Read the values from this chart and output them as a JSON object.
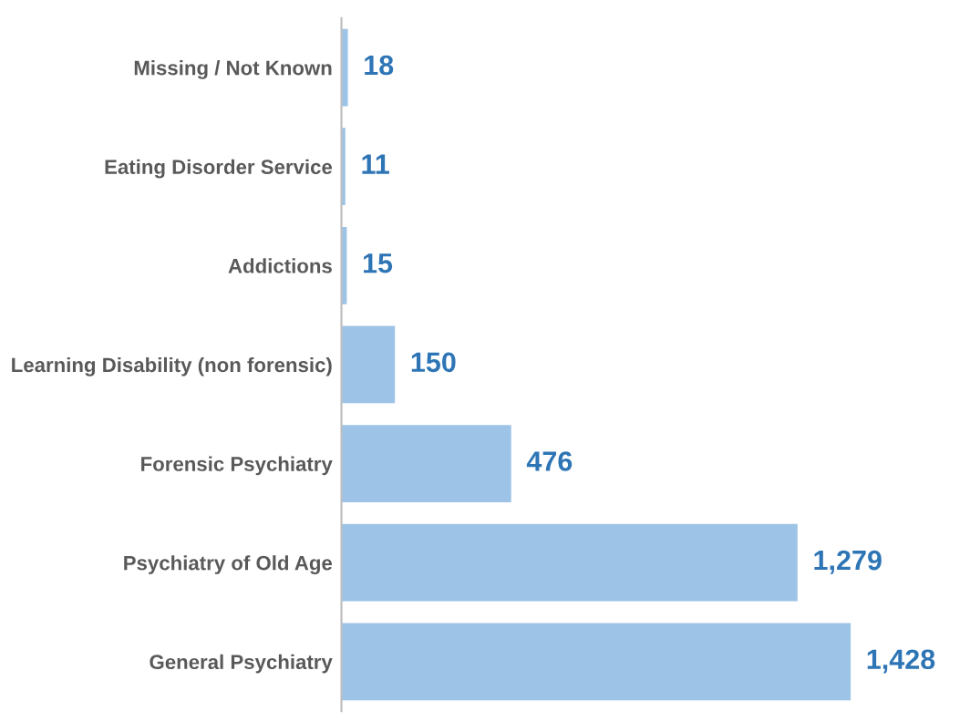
{
  "chart_data": {
    "type": "bar",
    "orientation": "horizontal",
    "categories": [
      "Missing / Not Known",
      "Eating Disorder Service",
      "Addictions",
      "Learning Disability (non forensic)",
      "Forensic Psychiatry",
      "Psychiatry of Old Age",
      "General Psychiatry"
    ],
    "values": [
      18,
      11,
      15,
      150,
      476,
      1279,
      1428
    ],
    "value_labels": [
      "18",
      "11",
      "15",
      "150",
      "476",
      "1,279",
      "1,428"
    ],
    "color": "#9dc3e6",
    "grid": false,
    "legend": false,
    "tick_labels": "y"
  }
}
